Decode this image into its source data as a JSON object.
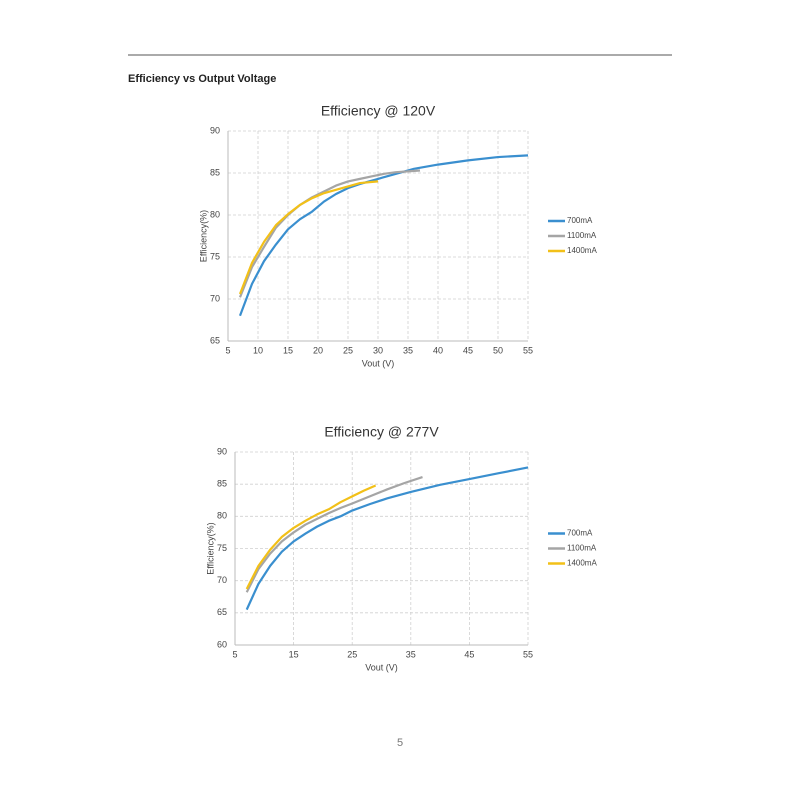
{
  "heading": "Efficiency vs Output Voltage",
  "page_number": "5",
  "chart_data": [
    {
      "type": "line",
      "title": "Efficiency @ 120V",
      "x_label": "Vout (V)",
      "y_label": "Efficiency(%)",
      "xlim": [
        5,
        55
      ],
      "xticks": [
        5,
        10,
        15,
        20,
        25,
        30,
        35,
        40,
        45,
        50,
        55
      ],
      "ylim": [
        65,
        90
      ],
      "yticks": [
        65,
        70,
        75,
        80,
        85,
        90
      ],
      "grid": true,
      "legend": "right",
      "series": [
        {
          "name": "700mA",
          "color": "#3a8fcf",
          "x": [
            7,
            9,
            11,
            13,
            15,
            17,
            19,
            21,
            23,
            25,
            27,
            30,
            33,
            36,
            40,
            45,
            50,
            55
          ],
          "values": [
            68,
            71.8,
            74.5,
            76.5,
            78.3,
            79.5,
            80.4,
            81.6,
            82.5,
            83.2,
            83.7,
            84.3,
            84.9,
            85.5,
            86,
            86.5,
            86.9,
            87.1
          ]
        },
        {
          "name": "1100mA",
          "color": "#a5a5a5",
          "x": [
            7,
            9,
            11,
            13,
            15,
            17,
            19,
            21,
            23,
            25,
            27,
            29,
            31,
            33,
            37
          ],
          "values": [
            70.2,
            73.8,
            76.2,
            78.5,
            80,
            81.2,
            82.1,
            82.8,
            83.5,
            84,
            84.3,
            84.6,
            84.9,
            85.1,
            85.3
          ]
        },
        {
          "name": "1400mA",
          "color": "#f2c018",
          "x": [
            7,
            9,
            11,
            13,
            15,
            17,
            19,
            21,
            23,
            25,
            27,
            30
          ],
          "values": [
            70.6,
            74.3,
            76.8,
            78.8,
            80.1,
            81.2,
            82,
            82.6,
            83,
            83.4,
            83.8,
            84
          ]
        }
      ]
    },
    {
      "type": "line",
      "title": "Efficiency @ 277V",
      "x_label": "Vout (V)",
      "y_label": "Efficiency(%)",
      "xlim": [
        5,
        55
      ],
      "xticks": [
        5,
        15,
        25,
        35,
        45,
        55
      ],
      "ylim": [
        60,
        90
      ],
      "yticks": [
        60,
        65,
        70,
        75,
        80,
        85,
        90
      ],
      "grid": true,
      "legend": "right",
      "series": [
        {
          "name": "700mA",
          "color": "#3a8fcf",
          "x": [
            7,
            9,
            11,
            13,
            15,
            17,
            19,
            21,
            23,
            25,
            28,
            31,
            35,
            40,
            45,
            50,
            55
          ],
          "values": [
            65.5,
            69.5,
            72.3,
            74.5,
            76.1,
            77.3,
            78.4,
            79.3,
            80,
            80.9,
            81.9,
            82.8,
            83.8,
            84.9,
            85.8,
            86.7,
            87.6
          ]
        },
        {
          "name": "1100mA",
          "color": "#a5a5a5",
          "x": [
            7,
            9,
            11,
            13,
            15,
            17,
            19,
            21,
            23,
            25,
            28,
            31,
            34,
            37
          ],
          "values": [
            68.2,
            71.8,
            74.2,
            76.1,
            77.5,
            78.7,
            79.6,
            80.5,
            81.3,
            82,
            83.1,
            84.2,
            85.2,
            86.1
          ]
        },
        {
          "name": "1400mA",
          "color": "#f2c018",
          "x": [
            7,
            9,
            11,
            13,
            15,
            17,
            19,
            21,
            23,
            25,
            27,
            29
          ],
          "values": [
            68.7,
            72.3,
            74.8,
            76.8,
            78.2,
            79.3,
            80.3,
            81.1,
            82.2,
            83.1,
            84,
            84.8
          ]
        }
      ]
    }
  ]
}
